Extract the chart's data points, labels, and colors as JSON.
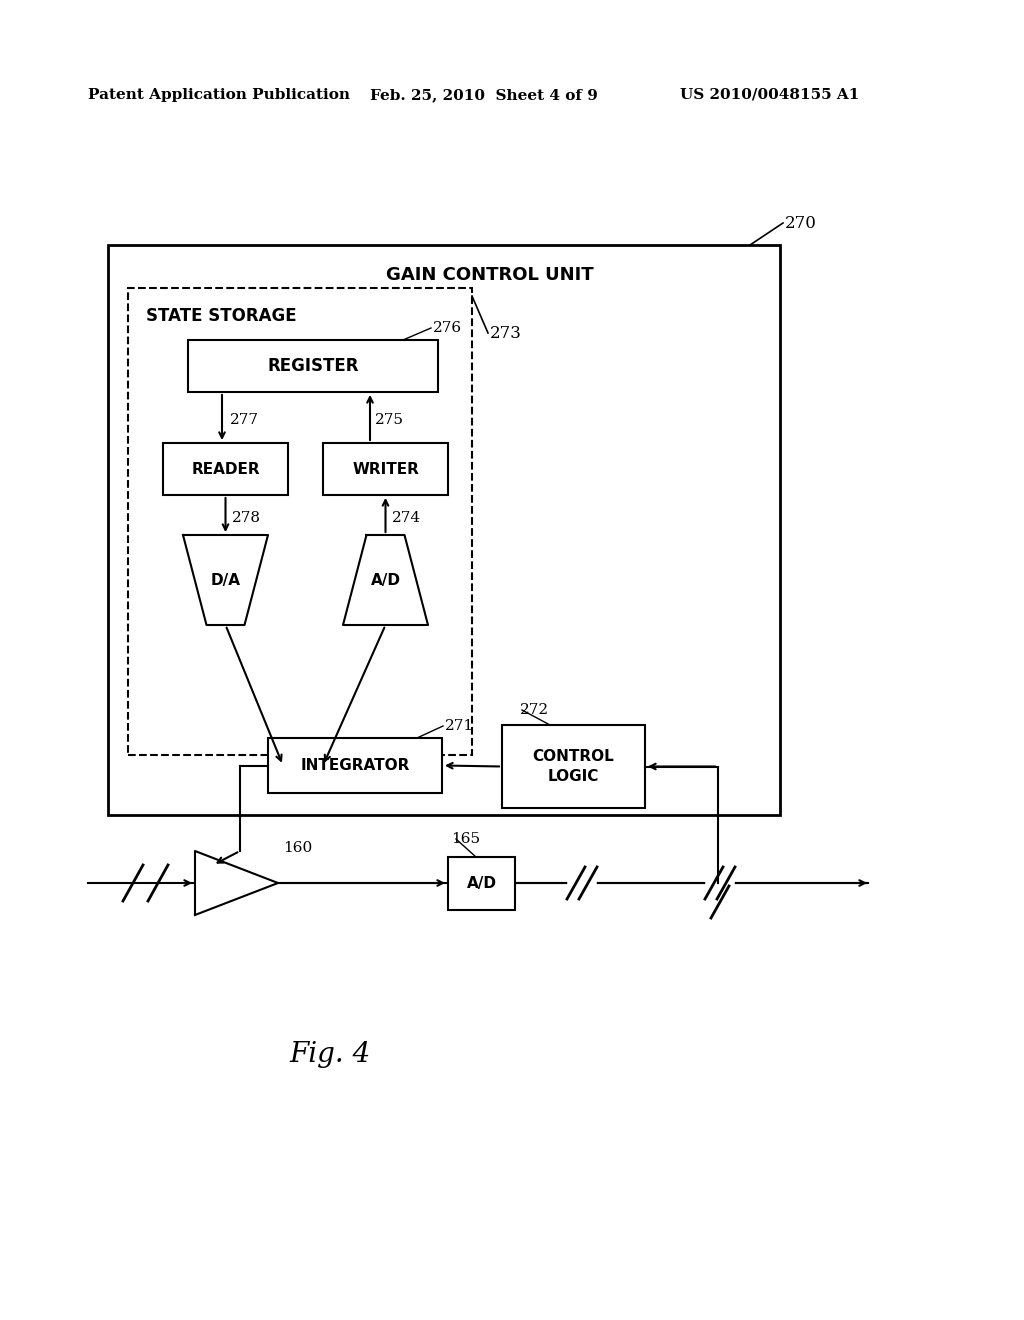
{
  "bg_color": "#ffffff",
  "header_left": "Patent Application Publication",
  "header_center": "Feb. 25, 2010  Sheet 4 of 9",
  "header_right": "US 2010/0048155 A1",
  "figure_label": "Fig. 4",
  "title_gain_control": "GAIN CONTROL UNIT",
  "label_270": "270",
  "label_273": "273",
  "label_271": "271",
  "label_272": "272",
  "label_275": "275",
  "label_276": "276",
  "label_277": "277",
  "label_278": "278",
  "label_274": "274",
  "label_160": "160",
  "label_165": "165",
  "label_state_storage": "STATE STORAGE",
  "label_register": "REGISTER",
  "label_reader": "READER",
  "label_writer": "WRITER",
  "label_da": "D/A",
  "label_ad_inner": "A/D",
  "label_integrator": "INTEGRATOR",
  "label_control_logic_line1": "CONTROL",
  "label_control_logic_line2": "LOGIC",
  "label_ad_bottom": "A/D"
}
